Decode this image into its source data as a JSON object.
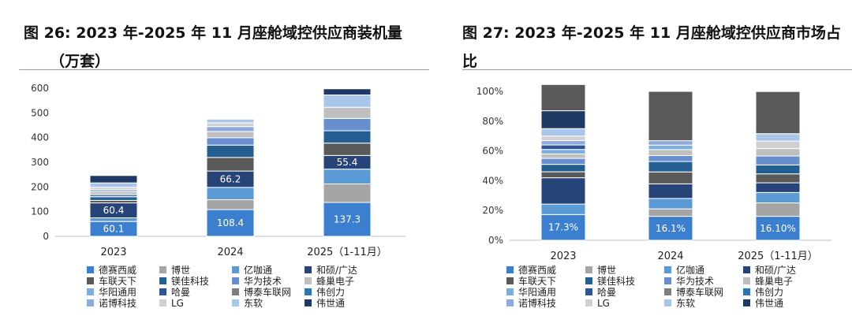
{
  "left_title": "图 26: 2023 年-2025 年 11 月座舱域控供应商装机量\n     （万套）",
  "right_title": "图 27: 2023 年-2025 年 11 月座舱域控供应商市场占\n比",
  "legend_entries": [
    "德赛西威",
    "博世",
    "亿咖通",
    "和硕/广达",
    "车联天下",
    "镁佳科技",
    "华为技术",
    "蜂巢电子",
    "华阳通用",
    "哈曼",
    "博泰车联网",
    "伟创力",
    "诺博科技",
    "LG",
    "东软",
    "伟世通"
  ],
  "colors": [
    "#3d7fcf",
    "#a5a5a5",
    "#5b9bd5",
    "#264478",
    "#595959",
    "#255e91",
    "#698ed0",
    "#bfbfbf",
    "#7cafdd",
    "#2f5597",
    "#7f7f7f",
    "#2e75b6",
    "#8faadc",
    "#d0d0d0",
    "#a9c6ea",
    "#1f3864"
  ],
  "chart_data": [
    {
      "type": "bar",
      "stacked": true,
      "categories": [
        "2023",
        "2024",
        "2025（1-11月）"
      ],
      "ylim": [
        0,
        600
      ],
      "yticks": [
        0,
        100,
        200,
        300,
        400,
        500,
        600
      ],
      "series": [
        {
          "name": "德赛西威",
          "values": [
            60.1,
            108.4,
            137.3
          ],
          "labels": [
            "60.1",
            "108.4",
            "137.3"
          ]
        },
        {
          "name": "博世",
          "values": [
            0,
            40,
            75
          ]
        },
        {
          "name": "亿咖通",
          "values": [
            15,
            50,
            60
          ]
        },
        {
          "name": "和硕/广达",
          "values": [
            60.4,
            66.2,
            55.4
          ],
          "labels": [
            "60.4",
            "66.2",
            "55.4"
          ]
        },
        {
          "name": "车联天下",
          "values": [
            10,
            55,
            50
          ]
        },
        {
          "name": "镁佳科技",
          "values": [
            15,
            50,
            50
          ]
        },
        {
          "name": "华为技术",
          "values": [
            10,
            30,
            50
          ]
        },
        {
          "name": "蜂巢电子",
          "values": [
            10,
            25,
            45
          ]
        },
        {
          "name": "华阳通用",
          "values": [
            0,
            0,
            0
          ]
        },
        {
          "name": "哈曼",
          "values": [
            0,
            0,
            0
          ]
        },
        {
          "name": "博泰车联网",
          "values": [
            0,
            0,
            0
          ]
        },
        {
          "name": "伟创力",
          "values": [
            0,
            0,
            0
          ]
        },
        {
          "name": "诺博科技",
          "values": [
            8,
            20,
            0
          ]
        },
        {
          "name": "LG",
          "values": [
            10,
            15,
            0
          ]
        },
        {
          "name": "东软",
          "values": [
            18,
            15,
            50
          ]
        },
        {
          "name": "伟世通",
          "values": [
            30,
            0,
            25
          ]
        }
      ]
    },
    {
      "type": "bar",
      "stacked": true,
      "categories": [
        "2023",
        "2024",
        "2025（1-11月）"
      ],
      "ylim": [
        0,
        100
      ],
      "yticks": [
        "0%",
        "20%",
        "40%",
        "60%",
        "80%",
        "100%"
      ],
      "series": [
        {
          "name": "德赛西威",
          "values": [
            17.3,
            16.1,
            16.1
          ],
          "labels": [
            "17.3%",
            "16.1%",
            "16.10%"
          ]
        },
        {
          "name": "博世",
          "values": [
            0,
            5,
            9
          ]
        },
        {
          "name": "亿咖通",
          "values": [
            7,
            7,
            7
          ]
        },
        {
          "name": "和硕/广达",
          "values": [
            17.7,
            9.8,
            6.5
          ]
        },
        {
          "name": "车联天下",
          "values": [
            4,
            8,
            6
          ]
        },
        {
          "name": "镁佳科技",
          "values": [
            5,
            7,
            6
          ]
        },
        {
          "name": "华为技术",
          "values": [
            4,
            4,
            6
          ]
        },
        {
          "name": "蜂巢电子",
          "values": [
            3,
            4,
            5
          ]
        },
        {
          "name": "华阳通用",
          "values": [
            3,
            3,
            0
          ]
        },
        {
          "name": "哈曼",
          "values": [
            3,
            0,
            0
          ]
        },
        {
          "name": "博泰车联网",
          "values": [
            0,
            0,
            0
          ]
        },
        {
          "name": "伟创力",
          "values": [
            0,
            0,
            0
          ]
        },
        {
          "name": "诺博科技",
          "values": [
            3,
            3,
            0
          ]
        },
        {
          "name": "LG",
          "values": [
            3,
            0,
            5
          ]
        },
        {
          "name": "东软",
          "values": [
            5,
            0,
            5
          ]
        },
        {
          "name": "伟世通",
          "values": [
            12,
            0,
            0
          ]
        },
        {
          "name": "",
          "values": [
            17.6,
            33.1,
            28.3
          ]
        }
      ],
      "series_colors_extra": {
        "16": "#595959"
      }
    }
  ]
}
